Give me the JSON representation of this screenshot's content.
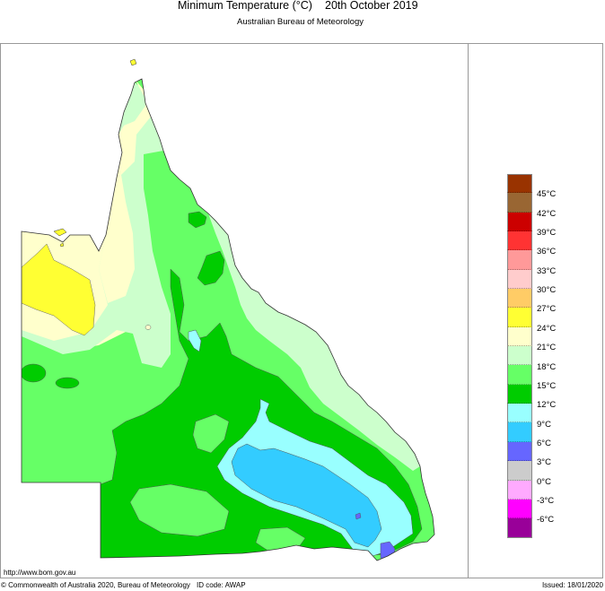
{
  "header": {
    "title": "Minimum Temperature (°C)",
    "date": "20th October 2019",
    "subtitle": "Australian Bureau of Meteorology"
  },
  "footer": {
    "url": "http://www.bom.gov.au",
    "copyright": "© Commonwealth of Australia 2020, Bureau of Meteorology",
    "id_code": "ID code: AWAP",
    "issued": "Issued: 18/01/2020"
  },
  "legend": {
    "bands": [
      {
        "color": "#993300"
      },
      {
        "color": "#996633"
      },
      {
        "color": "#cc0000"
      },
      {
        "color": "#ff3333"
      },
      {
        "color": "#ff9999"
      },
      {
        "color": "#ffcccc"
      },
      {
        "color": "#ffcc66"
      },
      {
        "color": "#ffff33"
      },
      {
        "color": "#ffffcc"
      },
      {
        "color": "#ccffcc"
      },
      {
        "color": "#66ff66"
      },
      {
        "color": "#00cc00"
      },
      {
        "color": "#99ffff"
      },
      {
        "color": "#33ccff"
      },
      {
        "color": "#6666ff"
      },
      {
        "color": "#cccccc"
      },
      {
        "color": "#ffaaff"
      },
      {
        "color": "#ff00ff"
      },
      {
        "color": "#990099"
      }
    ],
    "labels": [
      "45°C",
      "42°C",
      "39°C",
      "36°C",
      "33°C",
      "30°C",
      "27°C",
      "24°C",
      "21°C",
      "18°C",
      "15°C",
      "12°C",
      "9°C",
      "6°C",
      "3°C",
      "0°C",
      "-3°C",
      "-6°C"
    ]
  },
  "map": {
    "region": "Queensland",
    "colors": {
      "24_27": "#ffff33",
      "21_24": "#ffffcc",
      "18_21": "#ccffcc",
      "15_18": "#66ff66",
      "12_15": "#00cc00",
      "9_12": "#99ffff",
      "6_9": "#33ccff",
      "3_6": "#6666ff"
    }
  }
}
